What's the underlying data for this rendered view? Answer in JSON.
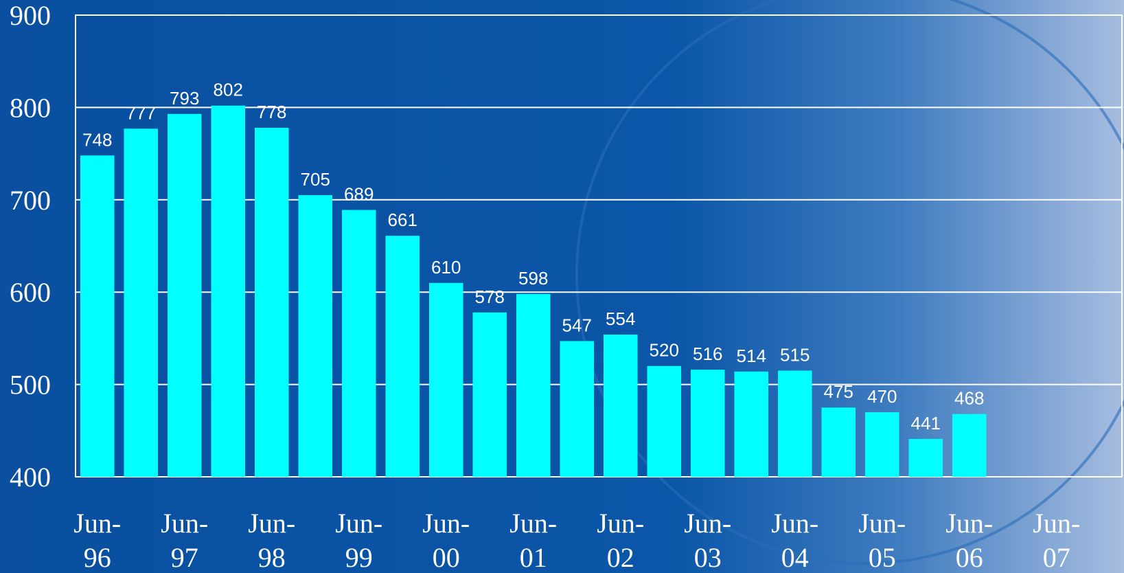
{
  "chart_data": {
    "type": "bar",
    "categories": [
      "Jun-96",
      null,
      "Jun-97",
      null,
      "Jun-98",
      null,
      "Jun-99",
      null,
      "Jun-00",
      null,
      "Jun-01",
      null,
      "Jun-02",
      null,
      "Jun-03",
      null,
      "Jun-04",
      null,
      "Jun-05",
      null,
      "Jun-06",
      null,
      "Jun-07",
      null
    ],
    "values": [
      748,
      777,
      793,
      802,
      778,
      705,
      689,
      661,
      610,
      578,
      598,
      547,
      554,
      520,
      516,
      514,
      515,
      475,
      470,
      441,
      468,
      null,
      null,
      null
    ],
    "color": "#00ffff",
    "ylim": [
      400,
      900
    ],
    "yticks": [
      400,
      500,
      600,
      700,
      800,
      900
    ],
    "grid": true
  }
}
